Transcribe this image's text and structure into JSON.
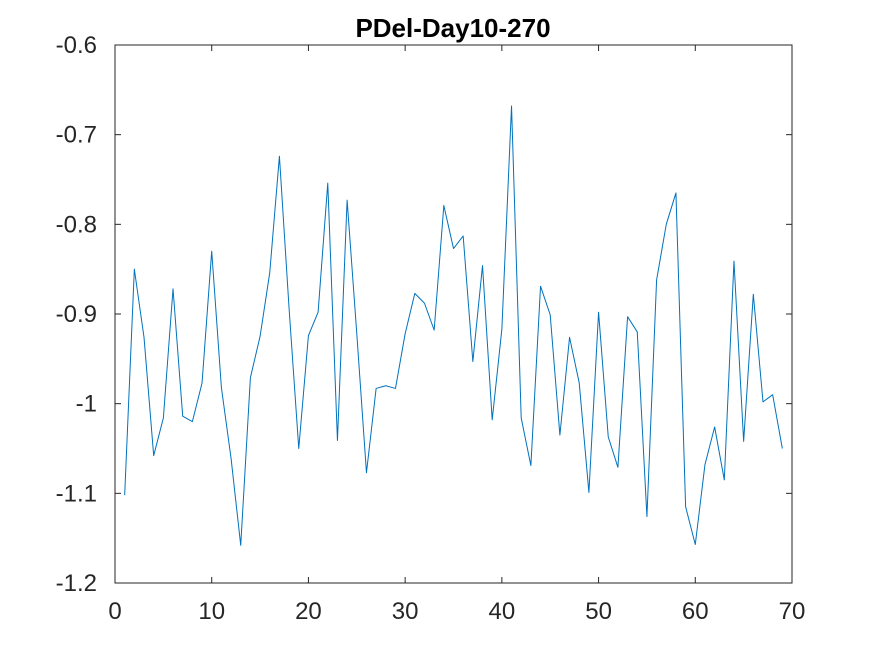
{
  "chart_data": {
    "type": "line",
    "title": "PDel-Day10-270",
    "xlabel": "",
    "ylabel": "",
    "xlim": [
      0,
      70
    ],
    "ylim": [
      -1.2,
      -0.6
    ],
    "x_ticks": [
      "0",
      "10",
      "20",
      "30",
      "40",
      "50",
      "60",
      "70"
    ],
    "y_ticks": [
      "-0.6",
      "-0.7",
      "-0.8",
      "-0.9",
      "-1",
      "-1.1",
      "-1.2"
    ],
    "grid": false,
    "line_color": "#0072BD",
    "series": [
      {
        "x": [
          1,
          2,
          3,
          4,
          5,
          6,
          7,
          8,
          9,
          10,
          11,
          12,
          13,
          14,
          15,
          16,
          17,
          18,
          19,
          20,
          21,
          22,
          23,
          24,
          25,
          26,
          27,
          28,
          29,
          30,
          31,
          32,
          33,
          34,
          35,
          36,
          37,
          38,
          39,
          40,
          41,
          42,
          43,
          44,
          45,
          46,
          47,
          48,
          49,
          50,
          51,
          52,
          53,
          54,
          55,
          56,
          57,
          58,
          59,
          60,
          61,
          62,
          63,
          64,
          65,
          66,
          67,
          68,
          69
        ],
        "values": [
          -1.102,
          -0.85,
          -0.926,
          -1.058,
          -1.016,
          -0.872,
          -1.014,
          -1.02,
          -0.977,
          -0.83,
          -0.982,
          -1.061,
          -1.158,
          -0.971,
          -0.925,
          -0.854,
          -0.724,
          -0.894,
          -1.05,
          -0.924,
          -0.898,
          -0.754,
          -1.041,
          -0.773,
          -0.922,
          -1.077,
          -0.983,
          -0.98,
          -0.983,
          -0.922,
          -0.877,
          -0.888,
          -0.918,
          -0.779,
          -0.827,
          -0.813,
          -0.953,
          -0.846,
          -1.018,
          -0.917,
          -0.668,
          -1.016,
          -1.069,
          -0.869,
          -0.901,
          -1.035,
          -0.926,
          -0.977,
          -1.099,
          -0.898,
          -1.037,
          -1.071,
          -0.903,
          -0.92,
          -1.126,
          -0.862,
          -0.8,
          -0.765,
          -1.115,
          -1.157,
          -1.068,
          -1.026,
          -1.085,
          -0.841,
          -1.042,
          -0.878,
          -0.998,
          -0.99,
          -1.05
        ]
      }
    ]
  }
}
